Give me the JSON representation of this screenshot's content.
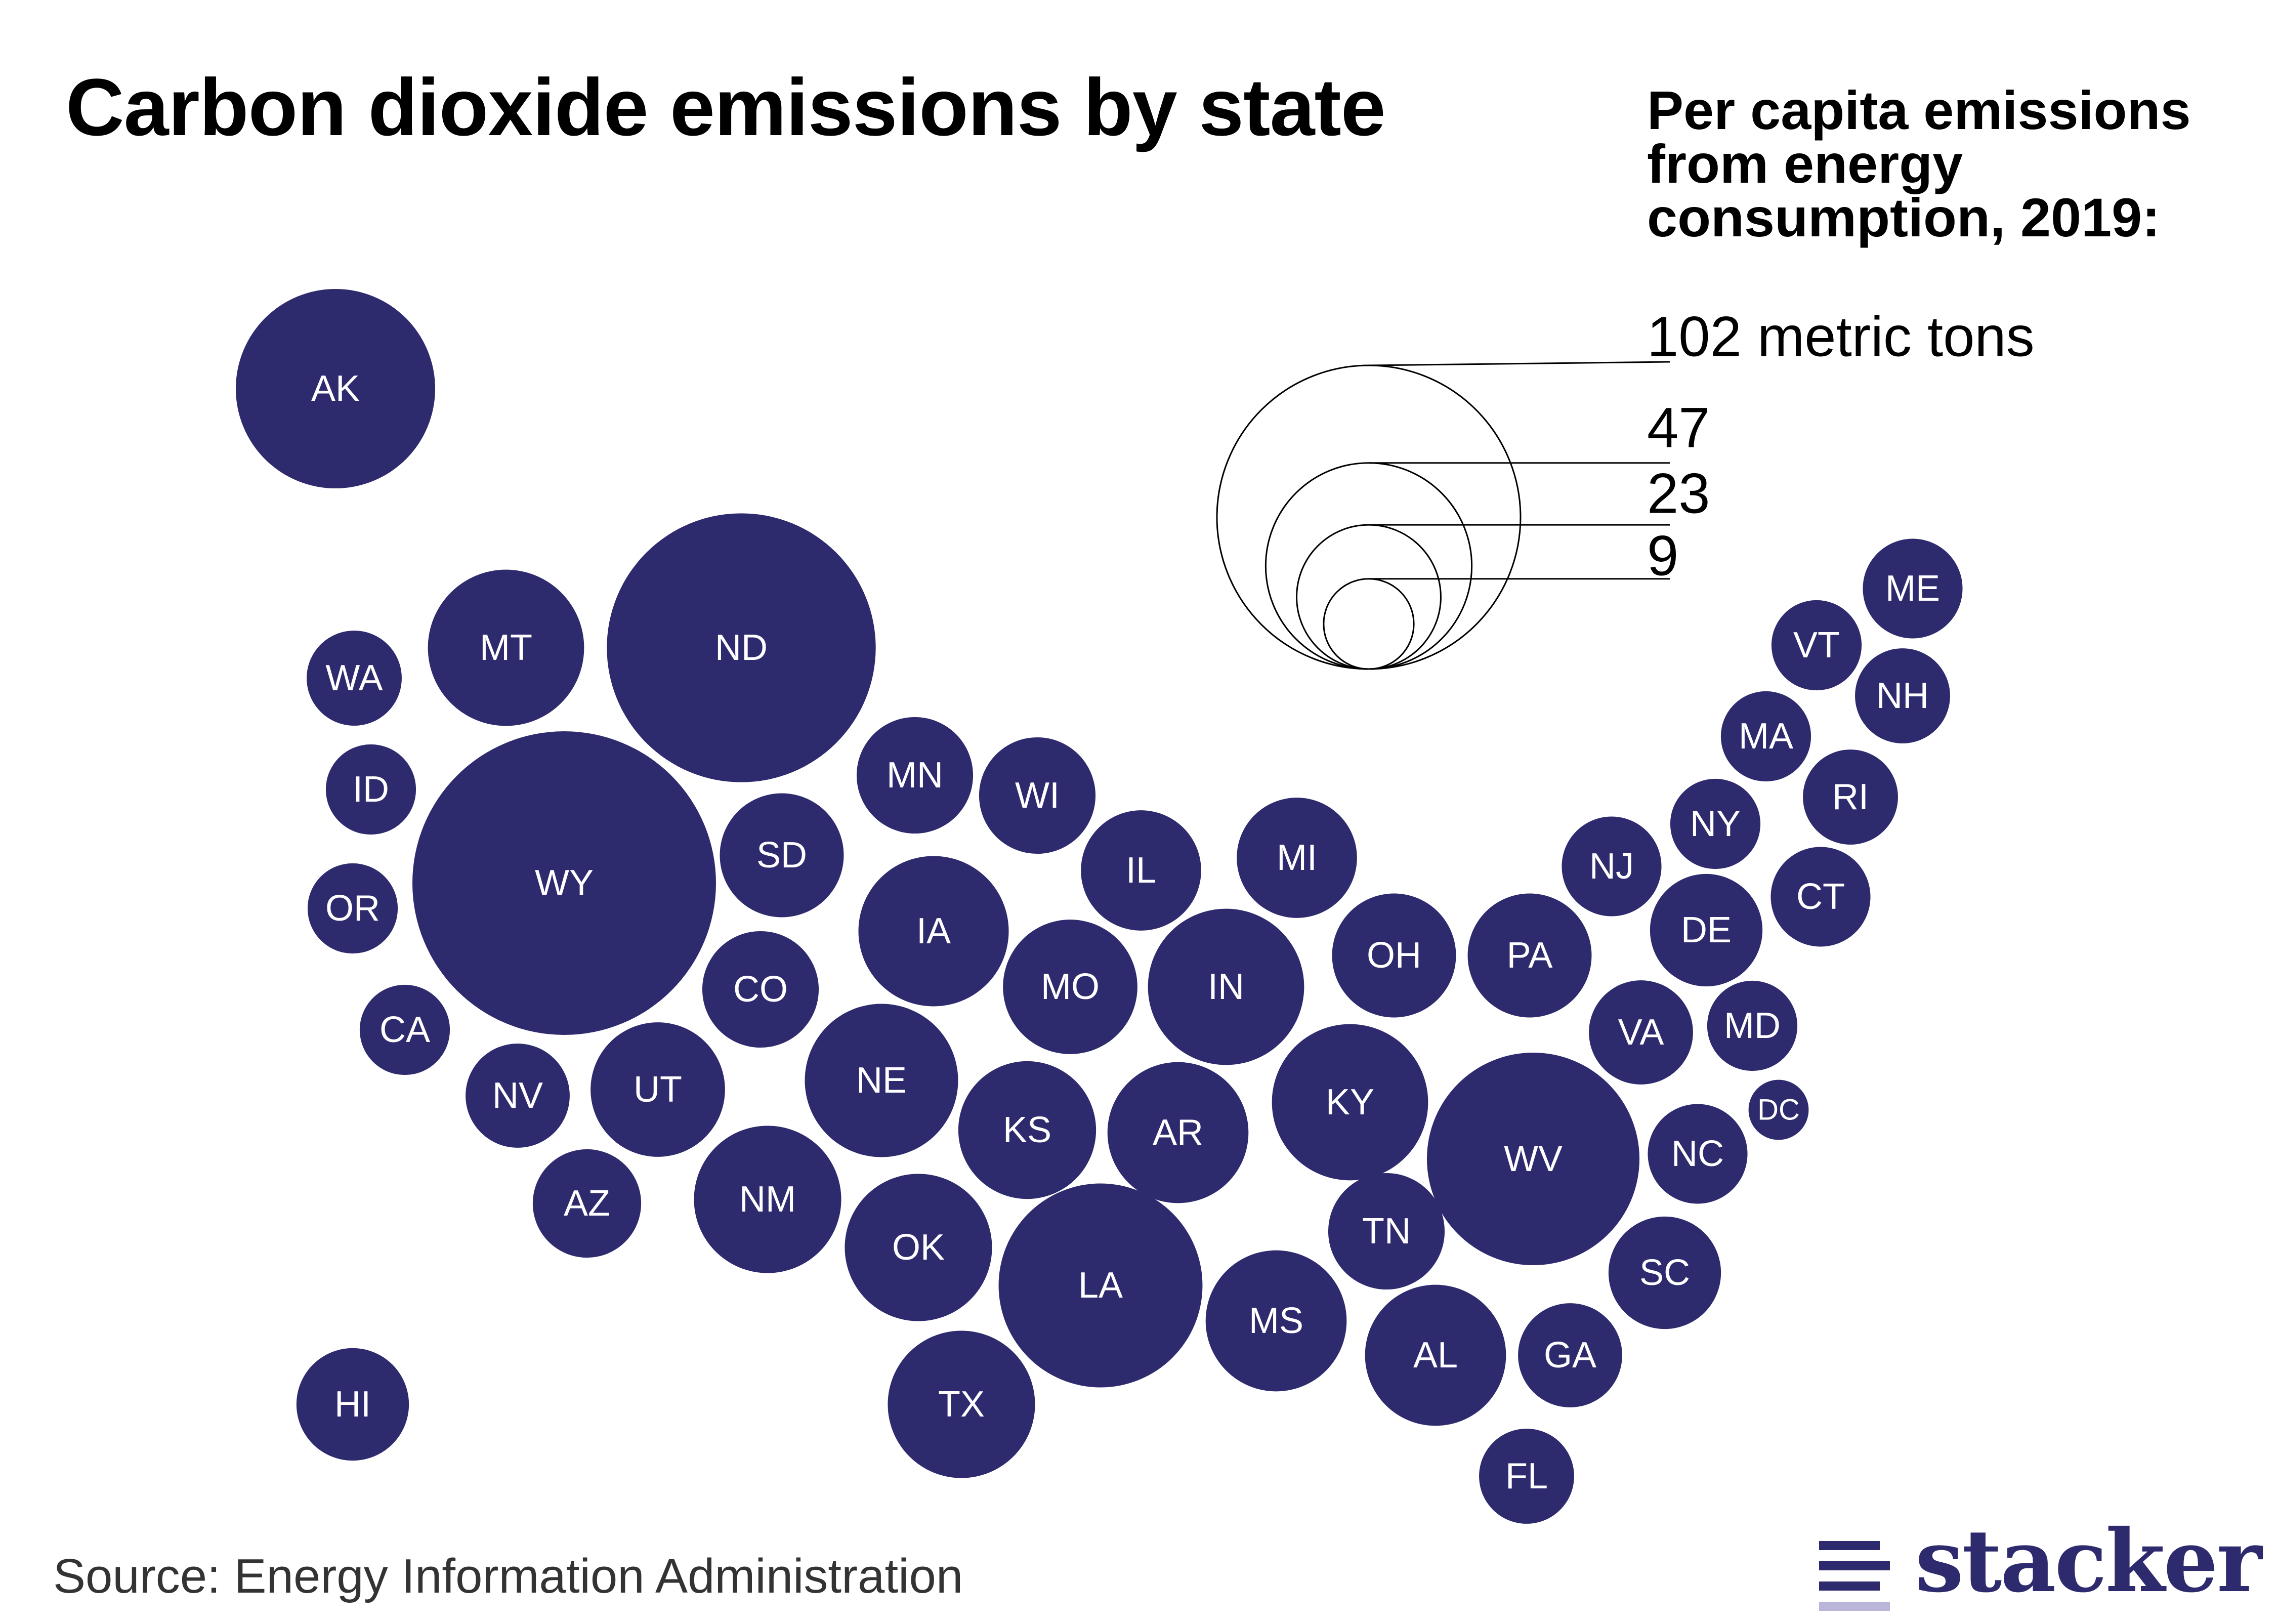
{
  "title": "Carbon dioxide emissions by state",
  "legend": {
    "title_lines": [
      "Per capita emissions",
      "from energy",
      "consumption, 2019:"
    ],
    "sizes": [
      {
        "value": 102,
        "label": "102 metric tons"
      },
      {
        "value": 47,
        "label": "47"
      },
      {
        "value": 23,
        "label": "23"
      },
      {
        "value": 9,
        "label": "9"
      }
    ]
  },
  "source": "Source: Energy Information Administration",
  "logo": {
    "text": "stacker",
    "name": "stacker-logo-icon"
  },
  "colors": {
    "bubble": "#2e2a6e",
    "label": "#ffffff",
    "legend_stroke": "#000000",
    "logo": "#2e2a6e",
    "logo_light": "#b9b6d9"
  },
  "map_data": {
    "type": "tile-bubble-map",
    "metric": "Per capita emissions from energy consumption, 2019 (metric tons)",
    "states": [
      {
        "abbr": "AK",
        "value": 44
      },
      {
        "abbr": "WA",
        "value": 10
      },
      {
        "abbr": "MT",
        "value": 27
      },
      {
        "abbr": "ND",
        "value": 80
      },
      {
        "abbr": "ID",
        "value": 9
      },
      {
        "abbr": "WY",
        "value": 102
      },
      {
        "abbr": "SD",
        "value": 17
      },
      {
        "abbr": "OR",
        "value": 9
      },
      {
        "abbr": "MN",
        "value": 15
      },
      {
        "abbr": "WI",
        "value": 15
      },
      {
        "abbr": "IL",
        "value": 16
      },
      {
        "abbr": "MI",
        "value": 16
      },
      {
        "abbr": "IA",
        "value": 25
      },
      {
        "abbr": "CO",
        "value": 15
      },
      {
        "abbr": "CA",
        "value": 9
      },
      {
        "abbr": "NV",
        "value": 12
      },
      {
        "abbr": "UT",
        "value": 20
      },
      {
        "abbr": "NE",
        "value": 26
      },
      {
        "abbr": "MO",
        "value": 20
      },
      {
        "abbr": "IN",
        "value": 27
      },
      {
        "abbr": "OH",
        "value": 17
      },
      {
        "abbr": "PA",
        "value": 17
      },
      {
        "abbr": "KS",
        "value": 21
      },
      {
        "abbr": "AR",
        "value": 22
      },
      {
        "abbr": "KY",
        "value": 27
      },
      {
        "abbr": "WV",
        "value": 50
      },
      {
        "abbr": "AZ",
        "value": 13
      },
      {
        "abbr": "NM",
        "value": 24
      },
      {
        "abbr": "OK",
        "value": 24
      },
      {
        "abbr": "LA",
        "value": 46
      },
      {
        "abbr": "TN",
        "value": 15
      },
      {
        "abbr": "MS",
        "value": 22
      },
      {
        "abbr": "AL",
        "value": 22
      },
      {
        "abbr": "GA",
        "value": 12
      },
      {
        "abbr": "TX",
        "value": 24
      },
      {
        "abbr": "HI",
        "value": 14
      },
      {
        "abbr": "FL",
        "value": 10
      },
      {
        "abbr": "SC",
        "value": 14
      },
      {
        "abbr": "NC",
        "value": 11
      },
      {
        "abbr": "VA",
        "value": 12
      },
      {
        "abbr": "MD",
        "value": 9
      },
      {
        "abbr": "DC",
        "value": 4
      },
      {
        "abbr": "DE",
        "value": 14
      },
      {
        "abbr": "NJ",
        "value": 11
      },
      {
        "abbr": "NY",
        "value": 9
      },
      {
        "abbr": "CT",
        "value": 11
      },
      {
        "abbr": "RI",
        "value": 10
      },
      {
        "abbr": "MA",
        "value": 9
      },
      {
        "abbr": "NH",
        "value": 10
      },
      {
        "abbr": "VT",
        "value": 9
      },
      {
        "abbr": "ME",
        "value": 11
      }
    ]
  }
}
